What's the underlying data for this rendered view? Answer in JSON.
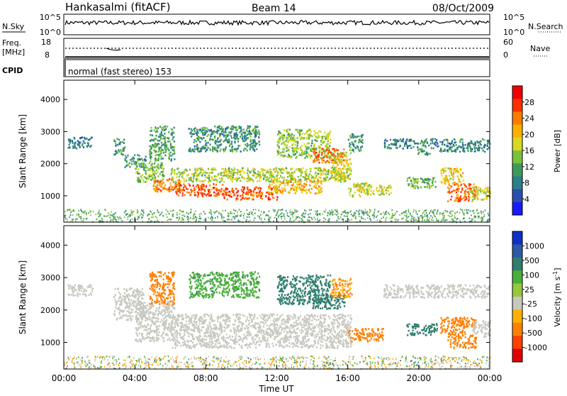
{
  "header": {
    "station": "Hankasalmi (fitACF)",
    "beam": "Beam 14",
    "date": "08/Oct/2009"
  },
  "strips": {
    "nsky": {
      "left_label": "N.Sky",
      "right_label": "N.Search",
      "left_ticks": [
        "10^5",
        "10^0"
      ],
      "right_ticks": [
        "10^5",
        "10^0"
      ],
      "legend_line": "solid"
    },
    "freq": {
      "left_label_line1": "Freq.",
      "left_label_line2": "[MHz]",
      "right_label": "Nave",
      "left_ticks": [
        "18",
        "8"
      ],
      "right_ticks": [
        "60",
        "0"
      ],
      "legend_line": "dotted"
    },
    "cpid": {
      "label": "CPID",
      "text": "normal (fast stereo) 153"
    }
  },
  "chart_data": [
    {
      "type": "heatmap",
      "title": "",
      "quantity": "Power",
      "xlabel": "Time UT",
      "ylabel": "Slant Range [km]",
      "colorbar_label": "Power [dB]",
      "colorbar_ticks": [
        "4",
        "8",
        "12",
        "16",
        "20",
        "24",
        "28"
      ],
      "colorbar_colors": [
        "#1a1aff",
        "#2a4eb0",
        "#2d7f8a",
        "#3f9a5a",
        "#7ac23a",
        "#d8d820",
        "#ffb000",
        "#ff7a00",
        "#ff3000",
        "#ee0000"
      ],
      "x_ticks": [
        "00:00",
        "04:00",
        "08:00",
        "12:00",
        "16:00",
        "20:00",
        "00:00"
      ],
      "y_ticks": [
        "1000",
        "2000",
        "3000",
        "4000"
      ],
      "xlim_hours": [
        0,
        24
      ],
      "ylim_km": [
        180,
        4600
      ],
      "background_scatter": {
        "range_km": [
          200,
          600
        ],
        "power_db": [
          8,
          16
        ]
      },
      "regions": [
        {
          "t": [
            0.2,
            1.6
          ],
          "r": [
            2500,
            2850
          ],
          "v": 8
        },
        {
          "t": [
            2.8,
            3.4
          ],
          "r": [
            2300,
            2800
          ],
          "v": 10
        },
        {
          "t": [
            3.4,
            4.6
          ],
          "r": [
            1900,
            2300
          ],
          "v": 10
        },
        {
          "t": [
            4.0,
            5.6
          ],
          "r": [
            1450,
            2050
          ],
          "v": 14
        },
        {
          "t": [
            4.8,
            6.2
          ],
          "r": [
            2100,
            3200
          ],
          "v": 12
        },
        {
          "t": [
            5.0,
            6.5
          ],
          "r": [
            1150,
            1550
          ],
          "v": 23
        },
        {
          "t": [
            6.2,
            9.0
          ],
          "r": [
            1000,
            1400
          ],
          "v": 26
        },
        {
          "t": [
            6.0,
            16.0
          ],
          "r": [
            1450,
            1900
          ],
          "v": 16
        },
        {
          "t": [
            9.0,
            12.0
          ],
          "r": [
            900,
            1300
          ],
          "v": 26
        },
        {
          "t": [
            11.5,
            14.5
          ],
          "r": [
            1100,
            1500
          ],
          "v": 20
        },
        {
          "t": [
            7.0,
            11.0
          ],
          "r": [
            2400,
            3200
          ],
          "v": 10
        },
        {
          "t": [
            12.0,
            15.0
          ],
          "r": [
            2200,
            3100
          ],
          "v": 15
        },
        {
          "t": [
            14.0,
            15.8
          ],
          "r": [
            2050,
            2500
          ],
          "v": 25
        },
        {
          "t": [
            15.0,
            16.2
          ],
          "r": [
            1500,
            2400
          ],
          "v": 18
        },
        {
          "t": [
            16.0,
            16.8
          ],
          "r": [
            2400,
            2950
          ],
          "v": 10
        },
        {
          "t": [
            16.0,
            17.2
          ],
          "r": [
            1000,
            1450
          ],
          "v": 18
        },
        {
          "t": [
            17.0,
            18.4
          ],
          "r": [
            1050,
            1350
          ],
          "v": 17
        },
        {
          "t": [
            18.0,
            21.0
          ],
          "r": [
            2500,
            2800
          ],
          "v": 9
        },
        {
          "t": [
            19.8,
            20.6
          ],
          "r": [
            2300,
            2500
          ],
          "v": 10
        },
        {
          "t": [
            21.0,
            24.0
          ],
          "r": [
            2400,
            2800
          ],
          "v": 9
        },
        {
          "t": [
            19.3,
            21.0
          ],
          "r": [
            1250,
            1600
          ],
          "v": 13
        },
        {
          "t": [
            21.2,
            22.5
          ],
          "r": [
            1400,
            1900
          ],
          "v": 19
        },
        {
          "t": [
            21.6,
            23.2
          ],
          "r": [
            850,
            1400
          ],
          "v": 25
        },
        {
          "t": [
            22.8,
            24.0
          ],
          "r": [
            900,
            1300
          ],
          "v": 17
        }
      ]
    },
    {
      "type": "heatmap",
      "title": "",
      "quantity": "Velocity",
      "xlabel": "Time UT",
      "ylabel": "Slant Range [km]",
      "colorbar_label": "Velocity [m s-1]",
      "colorbar_label_main": "Velocity [m s",
      "colorbar_label_sup": "-1",
      "colorbar_label_end": "]",
      "colorbar_ticks": [
        "1000",
        "500",
        "100",
        "25",
        "-25",
        "-100",
        "-500",
        "-1000"
      ],
      "colorbar_colors": [
        "#1030c8",
        "#2c5aa8",
        "#2f7e6e",
        "#4aae3a",
        "#96c83a",
        "#c8c8c0",
        "#ffb000",
        "#ff8000",
        "#ff4000",
        "#e00000"
      ],
      "x_ticks": [
        "00:00",
        "04:00",
        "08:00",
        "12:00",
        "16:00",
        "20:00",
        "00:00"
      ],
      "y_ticks": [
        "1000",
        "2000",
        "3000",
        "4000"
      ],
      "xlim_hours": [
        0,
        24
      ],
      "ylim_km": [
        180,
        4600
      ],
      "background_scatter": {
        "range_km": [
          200,
          600
        ],
        "velocity_ms": [
          -50,
          50
        ]
      },
      "regions": [
        {
          "t": [
            0.2,
            1.6
          ],
          "r": [
            2450,
            2800
          ],
          "v": 0
        },
        {
          "t": [
            2.8,
            4.5
          ],
          "r": [
            1700,
            2700
          ],
          "v": 0
        },
        {
          "t": [
            4.0,
            6.2
          ],
          "r": [
            1050,
            2300
          ],
          "v": 0
        },
        {
          "t": [
            6.0,
            16.2
          ],
          "r": [
            850,
            1900
          ],
          "v": 0
        },
        {
          "t": [
            4.8,
            6.2
          ],
          "r": [
            2200,
            3200
          ],
          "v": -150
        },
        {
          "t": [
            7.0,
            11.0
          ],
          "r": [
            2400,
            3200
          ],
          "v": 80
        },
        {
          "t": [
            12.0,
            15.0
          ],
          "r": [
            2200,
            3100
          ],
          "v": 150
        },
        {
          "t": [
            14.0,
            15.8
          ],
          "r": [
            2050,
            2500
          ],
          "v": 200
        },
        {
          "t": [
            15.0,
            16.2
          ],
          "r": [
            2400,
            3000
          ],
          "v": -100
        },
        {
          "t": [
            16.0,
            18.0
          ],
          "r": [
            1050,
            1450
          ],
          "v": -180
        },
        {
          "t": [
            18.0,
            24.0
          ],
          "r": [
            2400,
            2800
          ],
          "v": 0
        },
        {
          "t": [
            19.3,
            21.0
          ],
          "r": [
            1250,
            1600
          ],
          "v": 200
        },
        {
          "t": [
            21.2,
            22.6
          ],
          "r": [
            1300,
            1800
          ],
          "v": -250
        },
        {
          "t": [
            22.0,
            23.2
          ],
          "r": [
            1500,
            1800
          ],
          "v": -350
        },
        {
          "t": [
            21.6,
            23.2
          ],
          "r": [
            850,
            1300
          ],
          "v": -200
        },
        {
          "t": [
            23.0,
            24.0
          ],
          "r": [
            1200,
            1700
          ],
          "v": 0
        }
      ]
    }
  ]
}
